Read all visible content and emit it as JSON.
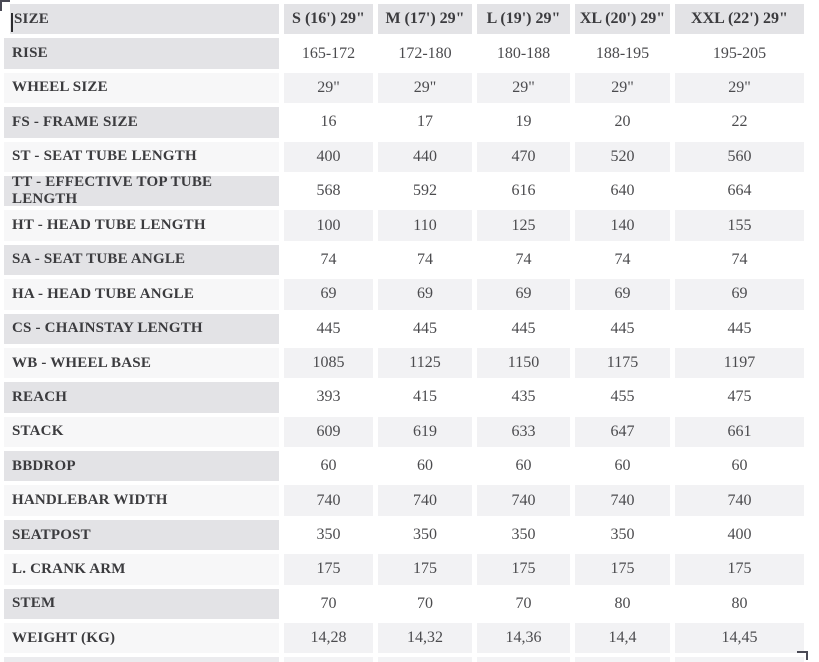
{
  "table": {
    "header": {
      "label": "SIZE",
      "columns": [
        "S (16') 29\"",
        "M (17') 29\"",
        "L (19') 29\"",
        "XL (20') 29\"",
        "XXL (22') 29\""
      ]
    },
    "rows": [
      {
        "label": "RISE",
        "values": [
          "165-172",
          "172-180",
          "180-188",
          "188-195",
          "195-205"
        ]
      },
      {
        "label": "WHEEL SIZE",
        "values": [
          "29\"",
          "29\"",
          "29\"",
          "29\"",
          "29\""
        ]
      },
      {
        "label": "FS - FRAME SIZE",
        "values": [
          "16",
          "17",
          "19",
          "20",
          "22"
        ]
      },
      {
        "label": "ST - SEAT TUBE LENGTH",
        "values": [
          "400",
          "440",
          "470",
          "520",
          "560"
        ]
      },
      {
        "label": "TT - EFFECTIVE TOP TUBE LENGTH",
        "values": [
          "568",
          "592",
          "616",
          "640",
          "664"
        ]
      },
      {
        "label": "HT - HEAD TUBE LENGTH",
        "values": [
          "100",
          "110",
          "125",
          "140",
          "155"
        ]
      },
      {
        "label": "SA - SEAT TUBE ANGLE",
        "values": [
          "74",
          "74",
          "74",
          "74",
          "74"
        ]
      },
      {
        "label": "HA - HEAD TUBE ANGLE",
        "values": [
          "69",
          "69",
          "69",
          "69",
          "69"
        ]
      },
      {
        "label": "CS - CHAINSTAY LENGTH",
        "values": [
          "445",
          "445",
          "445",
          "445",
          "445"
        ]
      },
      {
        "label": "WB - WHEEL BASE",
        "values": [
          "1085",
          "1125",
          "1150",
          "1175",
          "1197"
        ]
      },
      {
        "label": "REACH",
        "values": [
          "393",
          "415",
          "435",
          "455",
          "475"
        ]
      },
      {
        "label": "STACK",
        "values": [
          "609",
          "619",
          "633",
          "647",
          "661"
        ]
      },
      {
        "label": "BBDROP",
        "values": [
          "60",
          "60",
          "60",
          "60",
          "60"
        ]
      },
      {
        "label": "HANDLEBAR WIDTH",
        "values": [
          "740",
          "740",
          "740",
          "740",
          "740"
        ]
      },
      {
        "label": "SEATPOST",
        "values": [
          "350",
          "350",
          "350",
          "350",
          "400"
        ]
      },
      {
        "label": "L. CRANK ARM",
        "values": [
          "175",
          "175",
          "175",
          "175",
          "175"
        ]
      },
      {
        "label": "STEM",
        "values": [
          "70",
          "70",
          "70",
          "80",
          "80"
        ]
      },
      {
        "label": "WEIGHT (KG)",
        "values": [
          "14,28",
          "14,32",
          "14,36",
          "14,4",
          "14,45"
        ]
      }
    ],
    "colors": {
      "header_bg": "#e3e3e6",
      "label_alt_bg": "#f7f7f8",
      "value_alt_bg": "#f2f2f4",
      "value_bg": "#ffffff",
      "label_text": "#3b3b3e",
      "value_text": "#4b4b4e"
    }
  }
}
